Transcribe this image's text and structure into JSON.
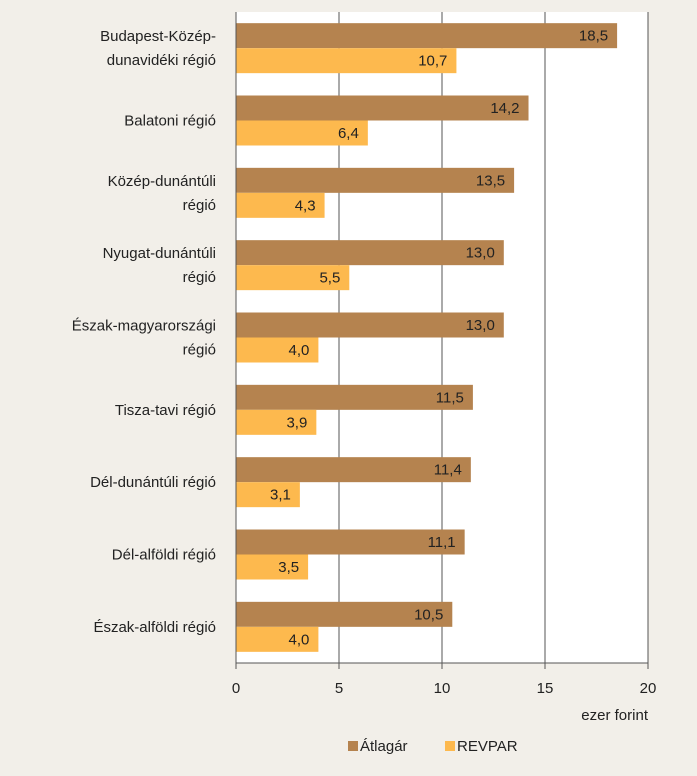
{
  "chart_data": {
    "type": "bar",
    "orientation": "horizontal",
    "categories": [
      [
        "Budapest-Közép-",
        "dunavidéki régió"
      ],
      [
        "Balatoni régió"
      ],
      [
        "Közép-dunántúli",
        "régió"
      ],
      [
        "Nyugat-dunántúli",
        "régió"
      ],
      [
        "Észak-magyarországi",
        "régió"
      ],
      [
        "Tisza-tavi régió"
      ],
      [
        "Dél-dunántúli régió"
      ],
      [
        "Dél-alföldi régió"
      ],
      [
        "Észak-alföldi régió"
      ]
    ],
    "series": [
      {
        "name": "Átlagár",
        "color": "#b5834f",
        "values": [
          18.5,
          14.2,
          13.5,
          13.0,
          13.0,
          11.5,
          11.4,
          11.1,
          10.5
        ],
        "labels": [
          "18,5",
          "14,2",
          "13,5",
          "13,0",
          "13,0",
          "11,5",
          "11,4",
          "11,1",
          "10,5"
        ]
      },
      {
        "name": "REVPAR",
        "color": "#fdb94e",
        "values": [
          10.7,
          6.4,
          4.3,
          5.5,
          4.0,
          3.9,
          3.1,
          3.5,
          4.0
        ],
        "labels": [
          "10,7",
          "6,4",
          "4,3",
          "5,5",
          "4,0",
          "3,9",
          "3,1",
          "3,5",
          "4,0"
        ]
      }
    ],
    "xlim": [
      0,
      20
    ],
    "xticks": [
      "0",
      "5",
      "10",
      "15",
      "20"
    ],
    "unit_label": "ezer forint",
    "grid": true,
    "legend_position": "bottom"
  }
}
